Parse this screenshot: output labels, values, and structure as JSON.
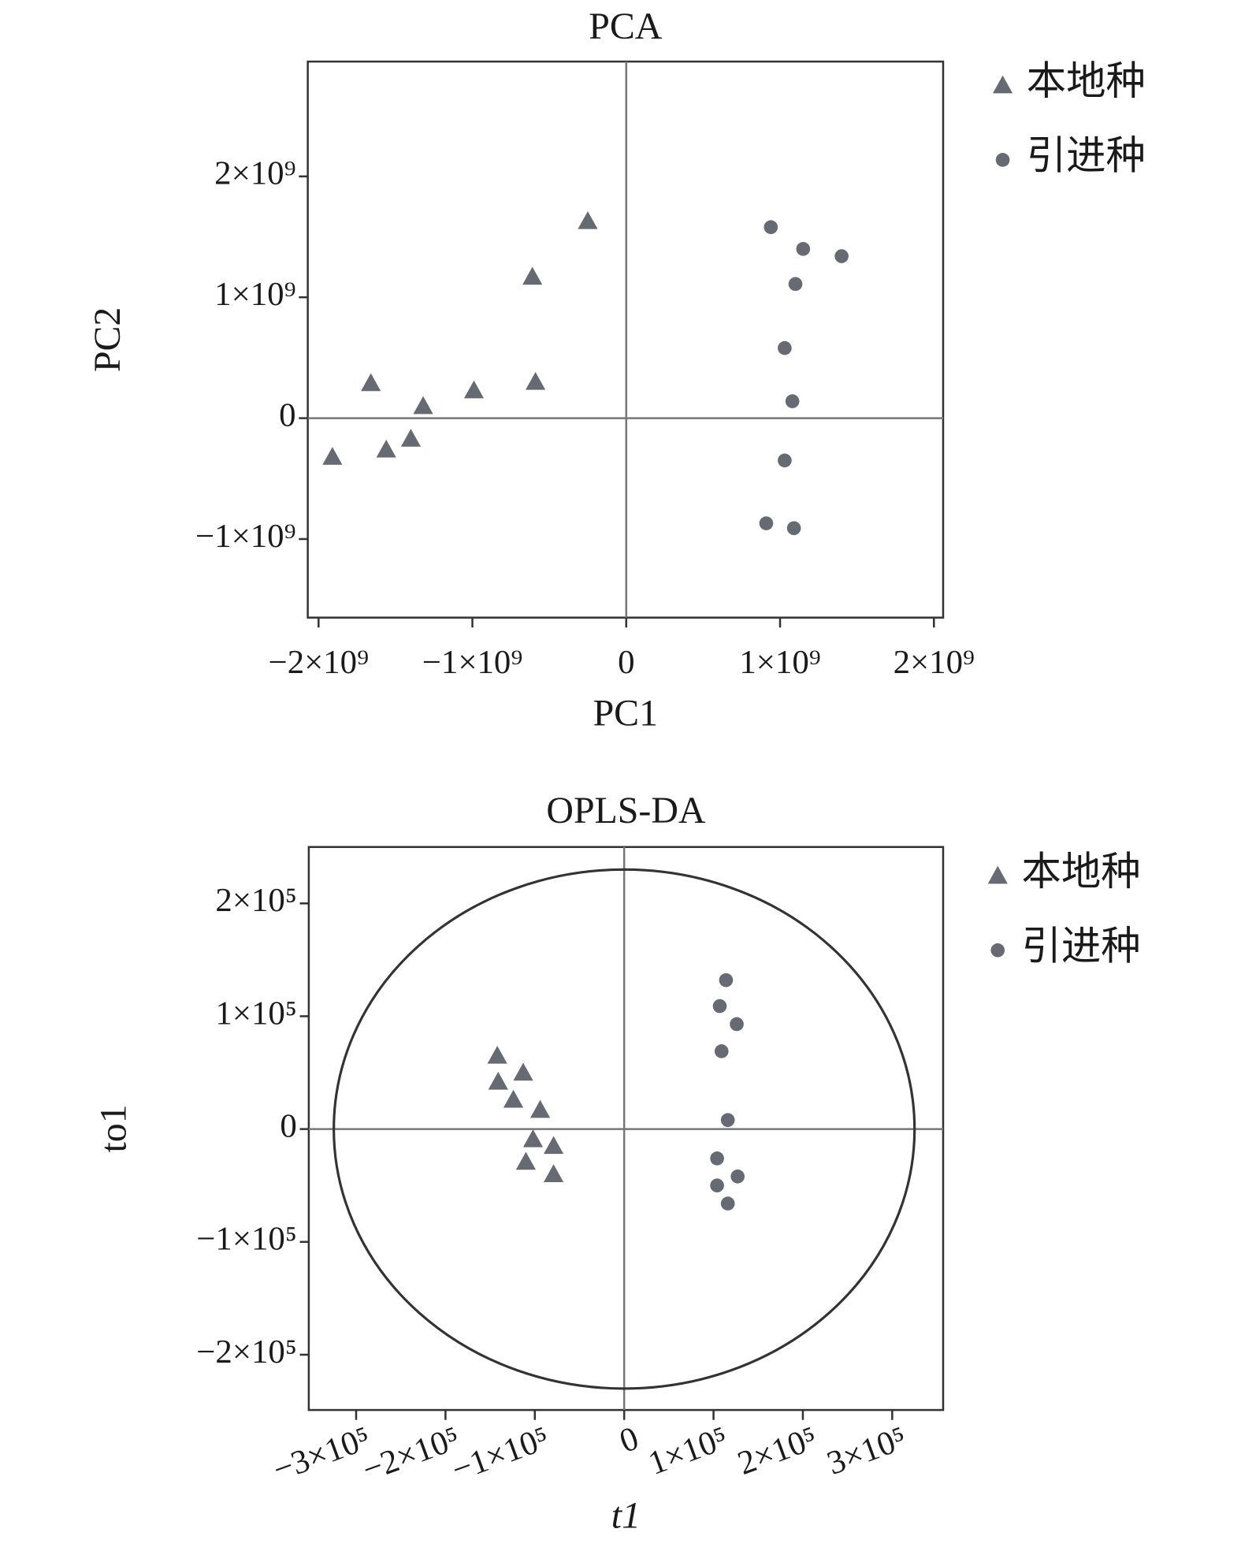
{
  "chart_data": [
    {
      "type": "scatter",
      "title": "PCA",
      "xlabel": "PC1",
      "ylabel": "PC2",
      "xlim": [
        -2070000000,
        2060000000
      ],
      "ylim": [
        -1650000000,
        2950000000
      ],
      "xticks": [
        {
          "value": -2000000000,
          "label": "−2×10⁹"
        },
        {
          "value": -1000000000,
          "label": "−1×10⁹"
        },
        0,
        {
          "value": 1000000000,
          "label": "1×10⁹"
        },
        {
          "value": 2000000000,
          "label": "2×10⁹"
        }
      ],
      "yticks": [
        {
          "value": -1000000000,
          "label": "−1×10⁹"
        },
        0,
        {
          "value": 1000000000,
          "label": "1×10⁹"
        },
        {
          "value": 2000000000,
          "label": "2×10⁹"
        }
      ],
      "zero_lines": true,
      "legend": "outside right",
      "series": [
        {
          "name": "本地种",
          "color": "#666a72",
          "marker": "triangle",
          "x": [
            -1910000000,
            -1660000000,
            -1560000000,
            -1400000000,
            -1320000000,
            -990000000,
            -590000000,
            -610000000,
            -250000000
          ],
          "values": [
            -320000000,
            290000000,
            -260000000,
            -170000000,
            100000000,
            230000000,
            300000000,
            1170000000,
            1630000000
          ]
        },
        {
          "name": "引进种",
          "color": "#666a72",
          "marker": "circle",
          "x": [
            940000000,
            1150000000,
            1400000000,
            1100000000,
            1030000000,
            1080000000,
            1030000000,
            910000000,
            1090000000
          ],
          "values": [
            1580000000,
            1400000000,
            1340000000,
            1110000000,
            580000000,
            140000000,
            -350000000,
            -870000000,
            -910000000
          ]
        }
      ]
    },
    {
      "type": "scatter",
      "title": "OPLS-DA",
      "xlabel": "t1",
      "ylabel": "to1",
      "xlim": [
        -353000,
        357000
      ],
      "ylim": [
        -249000,
        250000
      ],
      "xticks": [
        {
          "value": -300000,
          "label": "−3×10⁵"
        },
        {
          "value": -200000,
          "label": "−2×10⁵"
        },
        {
          "value": -100000,
          "label": "−1×10⁵"
        },
        0,
        {
          "value": 100000,
          "label": "1×10⁵"
        },
        {
          "value": 200000,
          "label": "2×10⁵"
        },
        {
          "value": 300000,
          "label": "3×10⁵"
        }
      ],
      "yticks": [
        {
          "value": -200000,
          "label": "−2×10⁵"
        },
        {
          "value": -100000,
          "label": "−1×10⁵"
        },
        0,
        {
          "value": 100000,
          "label": "1×10⁵"
        },
        {
          "value": 200000,
          "label": "2×10⁵"
        }
      ],
      "zero_lines": true,
      "legend": "outside right",
      "ellipse": {
        "rx": 325000,
        "ry": 230000
      },
      "series": [
        {
          "name": "本地种",
          "color": "#666a72",
          "marker": "triangle",
          "x": [
            -142000,
            -113000,
            -141000,
            -124000,
            -94000,
            -102000,
            -79000,
            -110000,
            -79000
          ],
          "values": [
            65000,
            50000,
            42000,
            26000,
            17000,
            -9000,
            -15000,
            -29000,
            -40000
          ]
        },
        {
          "name": "引进种",
          "color": "#666a72",
          "marker": "circle",
          "x": [
            114000,
            107000,
            126000,
            109000,
            116000,
            104000,
            127000,
            104000,
            116000
          ],
          "values": [
            132000,
            109000,
            93000,
            69000,
            8000,
            -26000,
            -42000,
            -50000,
            -66000
          ]
        }
      ]
    }
  ]
}
